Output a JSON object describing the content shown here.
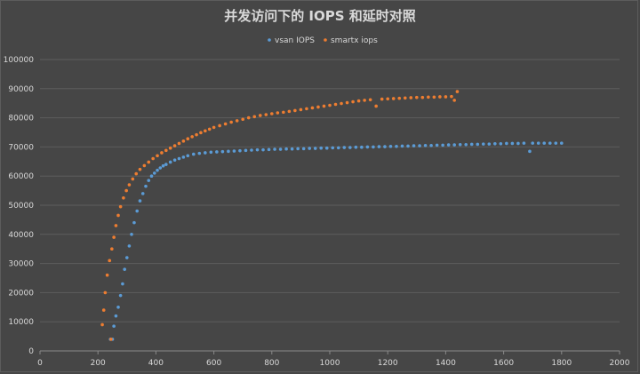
{
  "chart_data": {
    "type": "scatter",
    "title": "并发访问下的 IOPS 和延时对照",
    "xlabel": "",
    "ylabel": "",
    "xlim": [
      0,
      2000
    ],
    "ylim": [
      0,
      100000
    ],
    "x_ticks": [
      "0",
      "200",
      "400",
      "600",
      "800",
      "1000",
      "1200",
      "1400",
      "1600",
      "1800",
      "2000"
    ],
    "y_ticks": [
      "0",
      "10000",
      "20000",
      "30000",
      "40000",
      "50000",
      "60000",
      "70000",
      "80000",
      "90000",
      "100000"
    ],
    "grid": true,
    "legend_position": "top-center",
    "series": [
      {
        "name": "vsan IOPS",
        "color": "#5b9bd5",
        "points": [
          [
            243,
            4000
          ],
          [
            250,
            4000
          ],
          [
            255,
            8500
          ],
          [
            262,
            12000
          ],
          [
            270,
            15000
          ],
          [
            278,
            19000
          ],
          [
            285,
            23000
          ],
          [
            292,
            28000
          ],
          [
            300,
            32000
          ],
          [
            308,
            36000
          ],
          [
            316,
            40000
          ],
          [
            325,
            44000
          ],
          [
            335,
            48000
          ],
          [
            345,
            51500
          ],
          [
            355,
            54000
          ],
          [
            365,
            56500
          ],
          [
            375,
            58500
          ],
          [
            385,
            60000
          ],
          [
            395,
            61000
          ],
          [
            405,
            62000
          ],
          [
            415,
            62800
          ],
          [
            425,
            63500
          ],
          [
            435,
            64000
          ],
          [
            450,
            64800
          ],
          [
            465,
            65500
          ],
          [
            480,
            66000
          ],
          [
            495,
            66500
          ],
          [
            510,
            67000
          ],
          [
            530,
            67500
          ],
          [
            550,
            67800
          ],
          [
            570,
            68000
          ],
          [
            590,
            68200
          ],
          [
            610,
            68300
          ],
          [
            630,
            68400
          ],
          [
            650,
            68500
          ],
          [
            670,
            68600
          ],
          [
            690,
            68700
          ],
          [
            710,
            68800
          ],
          [
            730,
            68900
          ],
          [
            750,
            69000
          ],
          [
            770,
            69000
          ],
          [
            790,
            69100
          ],
          [
            810,
            69200
          ],
          [
            830,
            69200
          ],
          [
            850,
            69300
          ],
          [
            870,
            69300
          ],
          [
            890,
            69400
          ],
          [
            910,
            69400
          ],
          [
            930,
            69500
          ],
          [
            950,
            69500
          ],
          [
            970,
            69600
          ],
          [
            990,
            69600
          ],
          [
            1010,
            69700
          ],
          [
            1030,
            69700
          ],
          [
            1050,
            69800
          ],
          [
            1070,
            69800
          ],
          [
            1090,
            69900
          ],
          [
            1110,
            69900
          ],
          [
            1130,
            70000
          ],
          [
            1150,
            70000
          ],
          [
            1170,
            70100
          ],
          [
            1190,
            70100
          ],
          [
            1210,
            70200
          ],
          [
            1230,
            70200
          ],
          [
            1250,
            70300
          ],
          [
            1270,
            70300
          ],
          [
            1290,
            70400
          ],
          [
            1310,
            70400
          ],
          [
            1330,
            70500
          ],
          [
            1350,
            70500
          ],
          [
            1370,
            70600
          ],
          [
            1390,
            70600
          ],
          [
            1410,
            70700
          ],
          [
            1430,
            70700
          ],
          [
            1450,
            70800
          ],
          [
            1470,
            70800
          ],
          [
            1490,
            70900
          ],
          [
            1510,
            70900
          ],
          [
            1530,
            71000
          ],
          [
            1550,
            71000
          ],
          [
            1570,
            71100
          ],
          [
            1590,
            71100
          ],
          [
            1610,
            71200
          ],
          [
            1630,
            71200
          ],
          [
            1650,
            71200
          ],
          [
            1670,
            71300
          ],
          [
            1690,
            68500
          ],
          [
            1700,
            71300
          ],
          [
            1720,
            71300
          ],
          [
            1740,
            71300
          ],
          [
            1760,
            71300
          ],
          [
            1780,
            71300
          ],
          [
            1800,
            71300
          ]
        ]
      },
      {
        "name": "smartx iops",
        "color": "#ed7d31",
        "points": [
          [
            215,
            9000
          ],
          [
            220,
            14000
          ],
          [
            225,
            20000
          ],
          [
            232,
            26000
          ],
          [
            240,
            31000
          ],
          [
            245,
            4000
          ],
          [
            248,
            35000
          ],
          [
            255,
            39000
          ],
          [
            262,
            43000
          ],
          [
            270,
            46500
          ],
          [
            278,
            49500
          ],
          [
            288,
            52500
          ],
          [
            298,
            55000
          ],
          [
            308,
            57000
          ],
          [
            320,
            59000
          ],
          [
            332,
            60800
          ],
          [
            345,
            62300
          ],
          [
            360,
            63600
          ],
          [
            375,
            64800
          ],
          [
            390,
            66000
          ],
          [
            405,
            67000
          ],
          [
            420,
            68000
          ],
          [
            435,
            68800
          ],
          [
            450,
            69600
          ],
          [
            465,
            70400
          ],
          [
            480,
            71200
          ],
          [
            495,
            72000
          ],
          [
            510,
            72800
          ],
          [
            525,
            73500
          ],
          [
            540,
            74200
          ],
          [
            555,
            74900
          ],
          [
            570,
            75500
          ],
          [
            585,
            76100
          ],
          [
            600,
            76700
          ],
          [
            620,
            77300
          ],
          [
            640,
            77900
          ],
          [
            660,
            78500
          ],
          [
            680,
            79000
          ],
          [
            700,
            79500
          ],
          [
            720,
            80000
          ],
          [
            740,
            80400
          ],
          [
            760,
            80800
          ],
          [
            780,
            81100
          ],
          [
            800,
            81400
          ],
          [
            820,
            81700
          ],
          [
            840,
            81900
          ],
          [
            860,
            82200
          ],
          [
            880,
            82500
          ],
          [
            900,
            82800
          ],
          [
            920,
            83100
          ],
          [
            940,
            83400
          ],
          [
            960,
            83700
          ],
          [
            980,
            84000
          ],
          [
            1000,
            84300
          ],
          [
            1020,
            84600
          ],
          [
            1040,
            84900
          ],
          [
            1060,
            85200
          ],
          [
            1080,
            85500
          ],
          [
            1100,
            85800
          ],
          [
            1120,
            86000
          ],
          [
            1140,
            86200
          ],
          [
            1160,
            84000
          ],
          [
            1180,
            86400
          ],
          [
            1200,
            86500
          ],
          [
            1220,
            86600
          ],
          [
            1240,
            86700
          ],
          [
            1260,
            86800
          ],
          [
            1280,
            86900
          ],
          [
            1300,
            87000
          ],
          [
            1320,
            87000
          ],
          [
            1340,
            87100
          ],
          [
            1360,
            87100
          ],
          [
            1380,
            87200
          ],
          [
            1400,
            87200
          ],
          [
            1420,
            87300
          ],
          [
            1430,
            86000
          ],
          [
            1440,
            89000
          ]
        ]
      }
    ]
  }
}
